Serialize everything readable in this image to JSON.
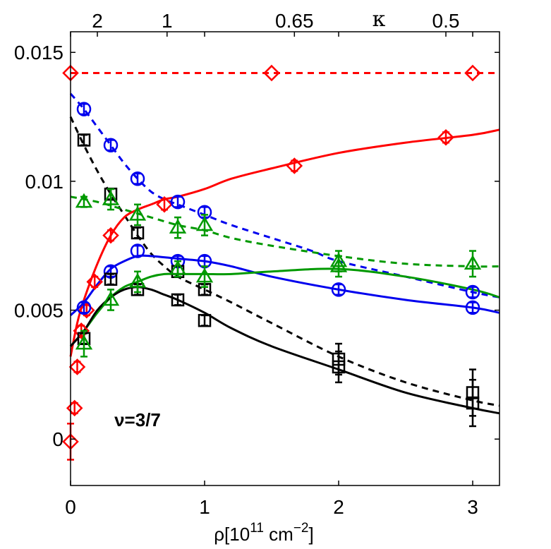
{
  "chart_data": {
    "type": "line",
    "xlabel": "ρ[10",
    "xlabel_exp1": "11",
    "xlabel_unit": " cm",
    "xlabel_exp2": "−2",
    "xlabel_end": "]",
    "xlim": [
      0,
      3.2
    ],
    "ylim": [
      -0.0018,
      0.0158
    ],
    "x_ticks": [
      {
        "value": 0,
        "label": "0"
      },
      {
        "value": 1,
        "label": "1"
      },
      {
        "value": 2,
        "label": "2"
      },
      {
        "value": 3,
        "label": "3"
      }
    ],
    "y_ticks": [
      {
        "value": 0,
        "label": "0"
      },
      {
        "value": 0.005,
        "label": "0.005"
      },
      {
        "value": 0.01,
        "label": "0.01"
      },
      {
        "value": 0.015,
        "label": "0.015"
      }
    ],
    "top_axis_label": "κ",
    "top_ticks": [
      {
        "value": 0.2,
        "label": "2"
      },
      {
        "value": 0.72,
        "label": "1"
      },
      {
        "value": 1.67,
        "label": "0.65"
      },
      {
        "value": 2.8,
        "label": "0.5"
      }
    ],
    "annotation": {
      "text": "ν=3/7",
      "x": 0.5,
      "y": 0.0005
    },
    "series": [
      {
        "name": "red-dashed",
        "color": "#ff0000",
        "dash": true,
        "curve": [
          [
            0,
            0.0142
          ],
          [
            3.2,
            0.0142
          ]
        ],
        "markers": [],
        "errs": []
      },
      {
        "name": "blue-dashed",
        "color": "#0000ee",
        "dash": true,
        "curve": [
          [
            0,
            0.0134
          ],
          [
            0.1,
            0.0128
          ],
          [
            0.2,
            0.0121
          ],
          [
            0.3,
            0.0114
          ],
          [
            0.4,
            0.0107
          ],
          [
            0.5,
            0.0101
          ],
          [
            0.6,
            0.0096
          ],
          [
            0.7,
            0.0093
          ],
          [
            0.8,
            0.0091
          ],
          [
            1.0,
            0.0087
          ],
          [
            1.2,
            0.0083
          ],
          [
            1.5,
            0.0078
          ],
          [
            1.8,
            0.0073
          ],
          [
            2.0,
            0.0069
          ],
          [
            2.5,
            0.0063
          ],
          [
            3.0,
            0.0057
          ],
          [
            3.2,
            0.0055
          ]
        ],
        "markers": [],
        "errs": []
      },
      {
        "name": "black-dashed",
        "color": "#000000",
        "dash": true,
        "curve": [
          [
            0,
            0.0125
          ],
          [
            0.1,
            0.0114
          ],
          [
            0.2,
            0.0104
          ],
          [
            0.3,
            0.0095
          ],
          [
            0.4,
            0.0087
          ],
          [
            0.5,
            0.0079
          ],
          [
            0.6,
            0.0072
          ],
          [
            0.7,
            0.0067
          ],
          [
            0.8,
            0.0063
          ],
          [
            1.0,
            0.0058
          ],
          [
            1.2,
            0.0053
          ],
          [
            1.5,
            0.0045
          ],
          [
            2.0,
            0.0032
          ],
          [
            2.5,
            0.0022
          ],
          [
            3.0,
            0.0015
          ],
          [
            3.2,
            0.0013
          ]
        ],
        "markers": [],
        "errs": []
      },
      {
        "name": "green-dashed",
        "color": "#009900",
        "dash": true,
        "curve": [
          [
            0,
            0.0094
          ],
          [
            0.2,
            0.0092
          ],
          [
            0.4,
            0.0089
          ],
          [
            0.6,
            0.0086
          ],
          [
            0.8,
            0.0083
          ],
          [
            1.0,
            0.0081
          ],
          [
            1.2,
            0.0078
          ],
          [
            1.5,
            0.0075
          ],
          [
            2.0,
            0.0071
          ],
          [
            2.5,
            0.0068
          ],
          [
            3.0,
            0.0067
          ],
          [
            3.2,
            0.0067
          ]
        ],
        "markers": [],
        "errs": []
      },
      {
        "name": "red-solid",
        "color": "#ff0000",
        "dash": false,
        "curve": [
          [
            0,
            0.0032
          ],
          [
            0.05,
            0.0045
          ],
          [
            0.1,
            0.0054
          ],
          [
            0.2,
            0.0068
          ],
          [
            0.3,
            0.0079
          ],
          [
            0.4,
            0.0086
          ],
          [
            0.5,
            0.0089
          ],
          [
            0.6,
            0.0091
          ],
          [
            0.7,
            0.0093
          ],
          [
            0.8,
            0.0094
          ],
          [
            1.0,
            0.0097
          ],
          [
            1.2,
            0.0101
          ],
          [
            1.5,
            0.0105
          ],
          [
            2.0,
            0.0111
          ],
          [
            2.5,
            0.0115
          ],
          [
            3.0,
            0.0118
          ],
          [
            3.2,
            0.012
          ]
        ],
        "markers": [],
        "errs": []
      },
      {
        "name": "blue-solid",
        "color": "#0000ee",
        "dash": false,
        "curve": [
          [
            0,
            0.0048
          ],
          [
            0.1,
            0.0053
          ],
          [
            0.2,
            0.006
          ],
          [
            0.3,
            0.0066
          ],
          [
            0.4,
            0.0069
          ],
          [
            0.5,
            0.0071
          ],
          [
            0.6,
            0.0071
          ],
          [
            0.8,
            0.007
          ],
          [
            1.0,
            0.0069
          ],
          [
            1.2,
            0.0067
          ],
          [
            1.5,
            0.0063
          ],
          [
            2.0,
            0.0058
          ],
          [
            2.5,
            0.0054
          ],
          [
            3.0,
            0.0051
          ],
          [
            3.2,
            0.0049
          ]
        ],
        "markers": [],
        "errs": []
      },
      {
        "name": "green-solid",
        "color": "#009900",
        "dash": false,
        "curve": [
          [
            0,
            0.0036
          ],
          [
            0.1,
            0.0042
          ],
          [
            0.2,
            0.0049
          ],
          [
            0.3,
            0.0055
          ],
          [
            0.4,
            0.0059
          ],
          [
            0.5,
            0.0061
          ],
          [
            0.6,
            0.0063
          ],
          [
            0.7,
            0.0064
          ],
          [
            0.8,
            0.0064
          ],
          [
            1.0,
            0.0064
          ],
          [
            1.2,
            0.0064
          ],
          [
            1.5,
            0.0065
          ],
          [
            2.0,
            0.0066
          ],
          [
            2.5,
            0.0063
          ],
          [
            3.0,
            0.0058
          ],
          [
            3.2,
            0.0055
          ]
        ],
        "markers": [],
        "errs": []
      },
      {
        "name": "black-solid",
        "color": "#000000",
        "dash": false,
        "curve": [
          [
            0,
            0.0036
          ],
          [
            0.1,
            0.0042
          ],
          [
            0.2,
            0.005
          ],
          [
            0.3,
            0.0055
          ],
          [
            0.4,
            0.0058
          ],
          [
            0.5,
            0.0059
          ],
          [
            0.6,
            0.0058
          ],
          [
            0.7,
            0.0056
          ],
          [
            0.8,
            0.0054
          ],
          [
            1.0,
            0.0049
          ],
          [
            1.2,
            0.0043
          ],
          [
            1.5,
            0.0036
          ],
          [
            2.0,
            0.0027
          ],
          [
            2.5,
            0.0018
          ],
          [
            3.0,
            0.0012
          ],
          [
            3.2,
            0.001
          ]
        ],
        "markers": [],
        "errs": []
      },
      {
        "name": "red-diamonds",
        "color": "#ff0000",
        "dash": false,
        "marker": "diamond",
        "curve": [],
        "markers": [
          [
            0,
            0.0142
          ],
          [
            1.5,
            0.0142
          ],
          [
            3.0,
            0.0142
          ],
          [
            0,
            -0.0001
          ],
          [
            0.03,
            0.0012
          ],
          [
            0.05,
            0.0028
          ],
          [
            0.08,
            0.0042
          ],
          [
            0.12,
            0.005
          ],
          [
            0.18,
            0.0061
          ],
          [
            0.3,
            0.0079
          ],
          [
            0.7,
            0.0091
          ],
          [
            1.67,
            0.0106
          ],
          [
            2.8,
            0.0117
          ]
        ],
        "errs": [
          0,
          0,
          0,
          0.0007,
          0.0002,
          0.0002,
          0.0002,
          0.0002,
          0.0002,
          0.0002,
          0.0002,
          0.0002,
          0.0002
        ]
      },
      {
        "name": "blue-circles",
        "color": "#0000ee",
        "dash": false,
        "marker": "circle",
        "curve": [],
        "markers": [
          [
            0.1,
            0.0128
          ],
          [
            0.3,
            0.0114
          ],
          [
            0.5,
            0.0101
          ],
          [
            0.8,
            0.0092
          ],
          [
            1.0,
            0.0088
          ],
          [
            0.1,
            0.0051
          ],
          [
            0.3,
            0.0065
          ],
          [
            0.5,
            0.0073
          ],
          [
            0.8,
            0.0069
          ],
          [
            1.0,
            0.0069
          ],
          [
            2.0,
            0.0058
          ],
          [
            3.0,
            0.0057
          ],
          [
            3.0,
            0.0051
          ]
        ],
        "errs": [
          0.0002,
          0.0002,
          0.0002,
          0.0002,
          0.0002,
          0.0002,
          0.0002,
          0.0002,
          0.0002,
          0.0002,
          0.0002,
          0.0002,
          0.0002
        ]
      },
      {
        "name": "black-squares",
        "color": "#000000",
        "dash": false,
        "marker": "square",
        "curve": [],
        "markers": [
          [
            0.1,
            0.0116
          ],
          [
            0.3,
            0.0095
          ],
          [
            0.5,
            0.008
          ],
          [
            0.8,
            0.0065
          ],
          [
            1.0,
            0.0058
          ],
          [
            0.1,
            0.0039
          ],
          [
            0.3,
            0.0062
          ],
          [
            0.5,
            0.0058
          ],
          [
            0.8,
            0.0054
          ],
          [
            1.0,
            0.0046
          ],
          [
            2.0,
            0.0031
          ],
          [
            2.0,
            0.0028
          ],
          [
            3.0,
            0.0018
          ],
          [
            3.0,
            0.0014
          ]
        ],
        "errs": [
          0.0002,
          0.0002,
          0.0002,
          0.0002,
          0.0002,
          0.0002,
          0.0002,
          0.0002,
          0.0002,
          0.0002,
          0.0006,
          0.0006,
          0.0009,
          0.0009
        ]
      },
      {
        "name": "green-triangles",
        "color": "#009900",
        "dash": false,
        "marker": "triangle",
        "curve": [],
        "markers": [
          [
            0.1,
            0.0092
          ],
          [
            0.3,
            0.0093
          ],
          [
            0.5,
            0.0087
          ],
          [
            0.8,
            0.0082
          ],
          [
            1.0,
            0.0083
          ],
          [
            0.1,
            0.0037
          ],
          [
            0.3,
            0.0054
          ],
          [
            0.5,
            0.0061
          ],
          [
            0.8,
            0.0066
          ],
          [
            1.0,
            0.0063
          ],
          [
            2.0,
            0.0069
          ],
          [
            2.0,
            0.0067
          ],
          [
            3.0,
            0.0068
          ]
        ],
        "errs": [
          0.0002,
          0.0004,
          0.0004,
          0.0004,
          0.0004,
          0.0005,
          0.0004,
          0.0004,
          0.0003,
          0.0004,
          0.0004,
          0.0004,
          0.0005
        ]
      }
    ]
  }
}
